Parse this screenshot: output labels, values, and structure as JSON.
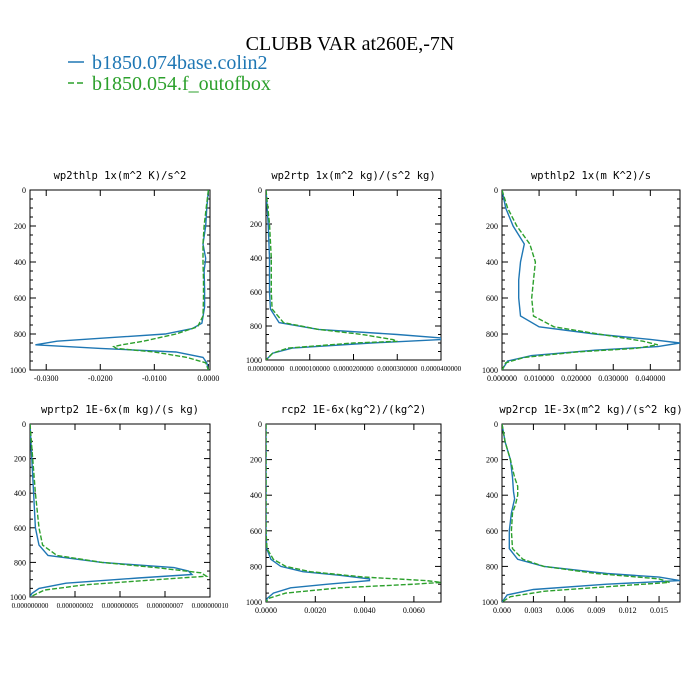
{
  "chart_data": {
    "title": "CLUBB VAR at260E,-7N",
    "legend": [
      {
        "name": "b1850.074base.colin2",
        "color": "#1f77b4",
        "dash": "solid"
      },
      {
        "name": "b1850.054.f_outofbox",
        "color": "#2ca02c",
        "dash": "dashed"
      }
    ],
    "panels": [
      {
        "title": "wp2thlp  1x(m^2 K)/s^2",
        "type": "line",
        "xlim": [
          -0.033,
          0.0003
        ],
        "ylim": [
          1000,
          0
        ],
        "xticks": [
          -0.03,
          -0.02,
          -0.01,
          0.0
        ],
        "xtick_labels": [
          "-0.0300",
          "-0.0200",
          "-0.0100",
          "0.0000"
        ],
        "yticks": [
          0,
          200,
          400,
          600,
          800,
          1000
        ],
        "series": [
          {
            "y": [
              0,
              100,
              200,
              300,
              380,
              450,
              550,
              650,
              740,
              770,
              800,
              820,
              840,
              860,
              880,
              900,
              930,
              960,
              1000
            ],
            "x": [
              0.0,
              -0.0003,
              -0.0005,
              -0.001,
              -0.0005,
              -0.0008,
              -0.0007,
              -0.0007,
              -0.0012,
              -0.003,
              -0.008,
              -0.018,
              -0.028,
              -0.032,
              -0.02,
              -0.006,
              -0.001,
              -0.0003,
              0.0
            ]
          },
          {
            "y": [
              0,
              100,
              200,
              300,
              400,
              500,
              600,
              700,
              760,
              800,
              840,
              860,
              870,
              880,
              900,
              930,
              960,
              1000
            ],
            "x": [
              0.0,
              -0.0004,
              -0.0008,
              -0.001,
              -0.001,
              -0.0009,
              -0.0009,
              -0.001,
              -0.002,
              -0.006,
              -0.012,
              -0.016,
              -0.0175,
              -0.017,
              -0.01,
              -0.004,
              -0.0005,
              0.0
            ]
          }
        ]
      },
      {
        "title": "wp2rtp  1x(m^2 kg)/(s^2 kg)",
        "type": "line",
        "xlim": [
          0,
          4e-05
        ],
        "ylim": [
          1000,
          0
        ],
        "xticks": [
          0,
          1e-05,
          2e-05,
          3e-05,
          4e-05
        ],
        "xtick_labels": [
          "0.000000000",
          "0.0000100000",
          "0.0000200000",
          "0.0000300000",
          "0.0000400000"
        ],
        "yticks": [
          0,
          200,
          400,
          600,
          800,
          1000
        ],
        "series": [
          {
            "y": [
              0,
              200,
              400,
              600,
              700,
              780,
              820,
              850,
              870,
              880,
              900,
              930,
              960,
              1000
            ],
            "x": [
              0.0,
              5e-07,
              8e-07,
              8e-07,
              1e-06,
              3e-06,
              1.2e-05,
              3e-05,
              4e-05,
              4e-05,
              2.4e-05,
              6e-06,
              1.5e-06,
              0.0
            ]
          },
          {
            "y": [
              0,
              200,
              400,
              600,
              700,
              780,
              820,
              850,
              880,
              890,
              900,
              930,
              960,
              1000
            ],
            "x": [
              0.0,
              8e-07,
              1.2e-06,
              1.2e-06,
              1.4e-06,
              4e-06,
              1.2e-05,
              2.2e-05,
              2.9e-05,
              3e-05,
              2e-05,
              5e-06,
              1.5e-06,
              0.0
            ]
          }
        ]
      },
      {
        "title": "wpthlp2  1x(m K^2)/s",
        "type": "line",
        "xlim": [
          0,
          0.048
        ],
        "ylim": [
          1000,
          0
        ],
        "xticks": [
          0,
          0.01,
          0.02,
          0.03,
          0.04
        ],
        "xtick_labels": [
          "0.000000",
          "0.010000",
          "0.020000",
          "0.030000",
          "0.040000"
        ],
        "yticks": [
          0,
          200,
          400,
          600,
          800,
          1000
        ],
        "series": [
          {
            "y": [
              0,
              100,
              200,
              300,
              400,
              500,
              600,
              700,
              760,
              800,
              830,
              850,
              870,
              890,
              920,
              950,
              1000
            ],
            "x": [
              0.0,
              0.001,
              0.003,
              0.006,
              0.005,
              0.0045,
              0.0045,
              0.005,
              0.01,
              0.025,
              0.04,
              0.048,
              0.042,
              0.025,
              0.008,
              0.0015,
              0.0
            ]
          },
          {
            "y": [
              0,
              100,
              200,
              300,
              400,
              500,
              600,
              700,
              760,
              800,
              840,
              860,
              880,
              900,
              930,
              960,
              1000
            ],
            "x": [
              0.0,
              0.0015,
              0.004,
              0.0075,
              0.009,
              0.0085,
              0.008,
              0.0085,
              0.014,
              0.026,
              0.038,
              0.042,
              0.036,
              0.02,
              0.006,
              0.001,
              0.0
            ]
          }
        ]
      },
      {
        "title": "wprtp2  1E-6x(m kg)/(s kg)",
        "type": "line",
        "xlim": [
          0,
          1e-08
        ],
        "ylim": [
          1000,
          0
        ],
        "xticks": [
          0,
          2.5e-09,
          5e-09,
          7.5e-09,
          1e-08
        ],
        "xtick_labels": [
          "0.000000000",
          "0.000000002",
          "0.000000005",
          "0.000000007",
          "0.000000010"
        ],
        "yticks": [
          0,
          200,
          400,
          600,
          800,
          1000
        ],
        "series": [
          {
            "y": [
              0,
              200,
              400,
              600,
              700,
              760,
              800,
              830,
              850,
              870,
              890,
              920,
              950,
              980,
              1000
            ],
            "x": [
              0.0,
              1e-10,
              2e-10,
              3e-10,
              5e-10,
              1e-09,
              4e-09,
              8e-09,
              8.8e-09,
              9e-09,
              6e-09,
              2e-09,
              5e-10,
              1e-10,
              0.0
            ]
          },
          {
            "y": [
              0,
              200,
              400,
              600,
              700,
              760,
              800,
              830,
              860,
              880,
              900,
              930,
              960,
              1000
            ],
            "x": [
              0.0,
              1.5e-10,
              3e-10,
              5e-10,
              7e-10,
              1.5e-09,
              4e-09,
              7e-09,
              9.5e-09,
              9.8e-09,
              7e-09,
              3e-09,
              8e-10,
              0.0
            ]
          }
        ]
      },
      {
        "title": "rcp2  1E-6x(kg^2)/(kg^2)",
        "type": "line",
        "xlim": [
          0,
          0.0071
        ],
        "ylim": [
          1000,
          0
        ],
        "xticks": [
          0,
          0.002,
          0.004,
          0.006
        ],
        "xtick_labels": [
          "0.0000",
          "0.0020",
          "0.0040",
          "0.0060"
        ],
        "yticks": [
          0,
          200,
          400,
          600,
          800,
          1000
        ],
        "series": [
          {
            "y": [
              0,
              600,
              700,
              760,
              800,
              830,
              850,
              870,
              880,
              900,
              920,
              950,
              980,
              1000
            ],
            "x": [
              0.0,
              0.0,
              3e-05,
              0.0002,
              0.0006,
              0.0015,
              0.003,
              0.0042,
              0.0042,
              0.0025,
              0.001,
              0.0003,
              5e-05,
              0.0
            ]
          },
          {
            "y": [
              0,
              600,
              700,
              760,
              800,
              830,
              860,
              880,
              890,
              900,
              920,
              950,
              980,
              1000
            ],
            "x": [
              0.0,
              0.0,
              4e-05,
              0.0003,
              0.0008,
              0.0018,
              0.004,
              0.0065,
              0.0071,
              0.006,
              0.003,
              0.0008,
              0.0001,
              0.0
            ]
          }
        ]
      },
      {
        "title": "wp2rcp  1E-3x(m^2 kg)/(s^2 kg)",
        "type": "line",
        "xlim": [
          0,
          0.017
        ],
        "ylim": [
          1000,
          0
        ],
        "xticks": [
          0,
          0.003,
          0.006,
          0.009,
          0.012,
          0.015
        ],
        "xtick_labels": [
          "0.000",
          "0.003",
          "0.006",
          "0.009",
          "0.012",
          "0.015"
        ],
        "yticks": [
          0,
          200,
          400,
          600,
          800,
          1000
        ],
        "series": [
          {
            "y": [
              0,
              100,
              200,
              300,
              380,
              420,
              500,
              600,
              700,
              760,
              800,
              840,
              860,
              880,
              900,
              930,
              960,
              1000
            ],
            "x": [
              0.0,
              0.0003,
              0.0008,
              0.001,
              0.0011,
              0.0012,
              0.0009,
              0.0007,
              0.0007,
              0.0015,
              0.004,
              0.01,
              0.015,
              0.017,
              0.01,
              0.003,
              0.0005,
              0.0
            ]
          },
          {
            "y": [
              0,
              100,
              200,
              300,
              350,
              400,
              450,
              500,
              600,
              700,
              760,
              800,
              840,
              870,
              890,
              910,
              940,
              970,
              1000
            ],
            "x": [
              0.0,
              0.0003,
              0.0008,
              0.0012,
              0.0015,
              0.0015,
              0.0013,
              0.001,
              0.0009,
              0.001,
              0.002,
              0.004,
              0.009,
              0.015,
              0.016,
              0.011,
              0.004,
              0.0008,
              0.0
            ]
          }
        ]
      }
    ]
  }
}
